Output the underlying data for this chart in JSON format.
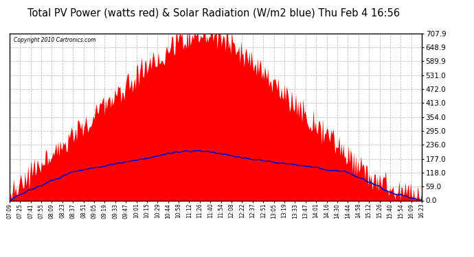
{
  "title": "Total PV Power (watts red) & Solar Radiation (W/m2 blue) Thu Feb 4 16:56",
  "copyright": "Copyright 2010 Cartronics.com",
  "yticks": [
    0.0,
    59.0,
    118.0,
    177.0,
    236.0,
    295.0,
    354.0,
    413.0,
    472.0,
    531.0,
    589.9,
    648.9,
    707.9
  ],
  "ymax": 707.9,
  "ymin": 0.0,
  "bg_color": "#ffffff",
  "plot_bg_color": "#ffffff",
  "red_color": "#ff0000",
  "blue_color": "#0000cc",
  "grid_color": "#c0c0c0",
  "title_fontsize": 11,
  "tick_labels": [
    "07:09",
    "07:25",
    "07:41",
    "07:55",
    "08:09",
    "08:23",
    "08:37",
    "08:51",
    "09:05",
    "09:19",
    "09:33",
    "09:47",
    "10:01",
    "10:15",
    "10:29",
    "10:44",
    "10:58",
    "11:12",
    "11:26",
    "11:40",
    "11:54",
    "12:08",
    "12:22",
    "12:37",
    "12:51",
    "13:05",
    "13:19",
    "13:33",
    "13:47",
    "14:01",
    "14:16",
    "14:30",
    "14:44",
    "14:58",
    "15:12",
    "15:26",
    "15:40",
    "15:54",
    "16:09",
    "16:23"
  ],
  "n_points": 400
}
